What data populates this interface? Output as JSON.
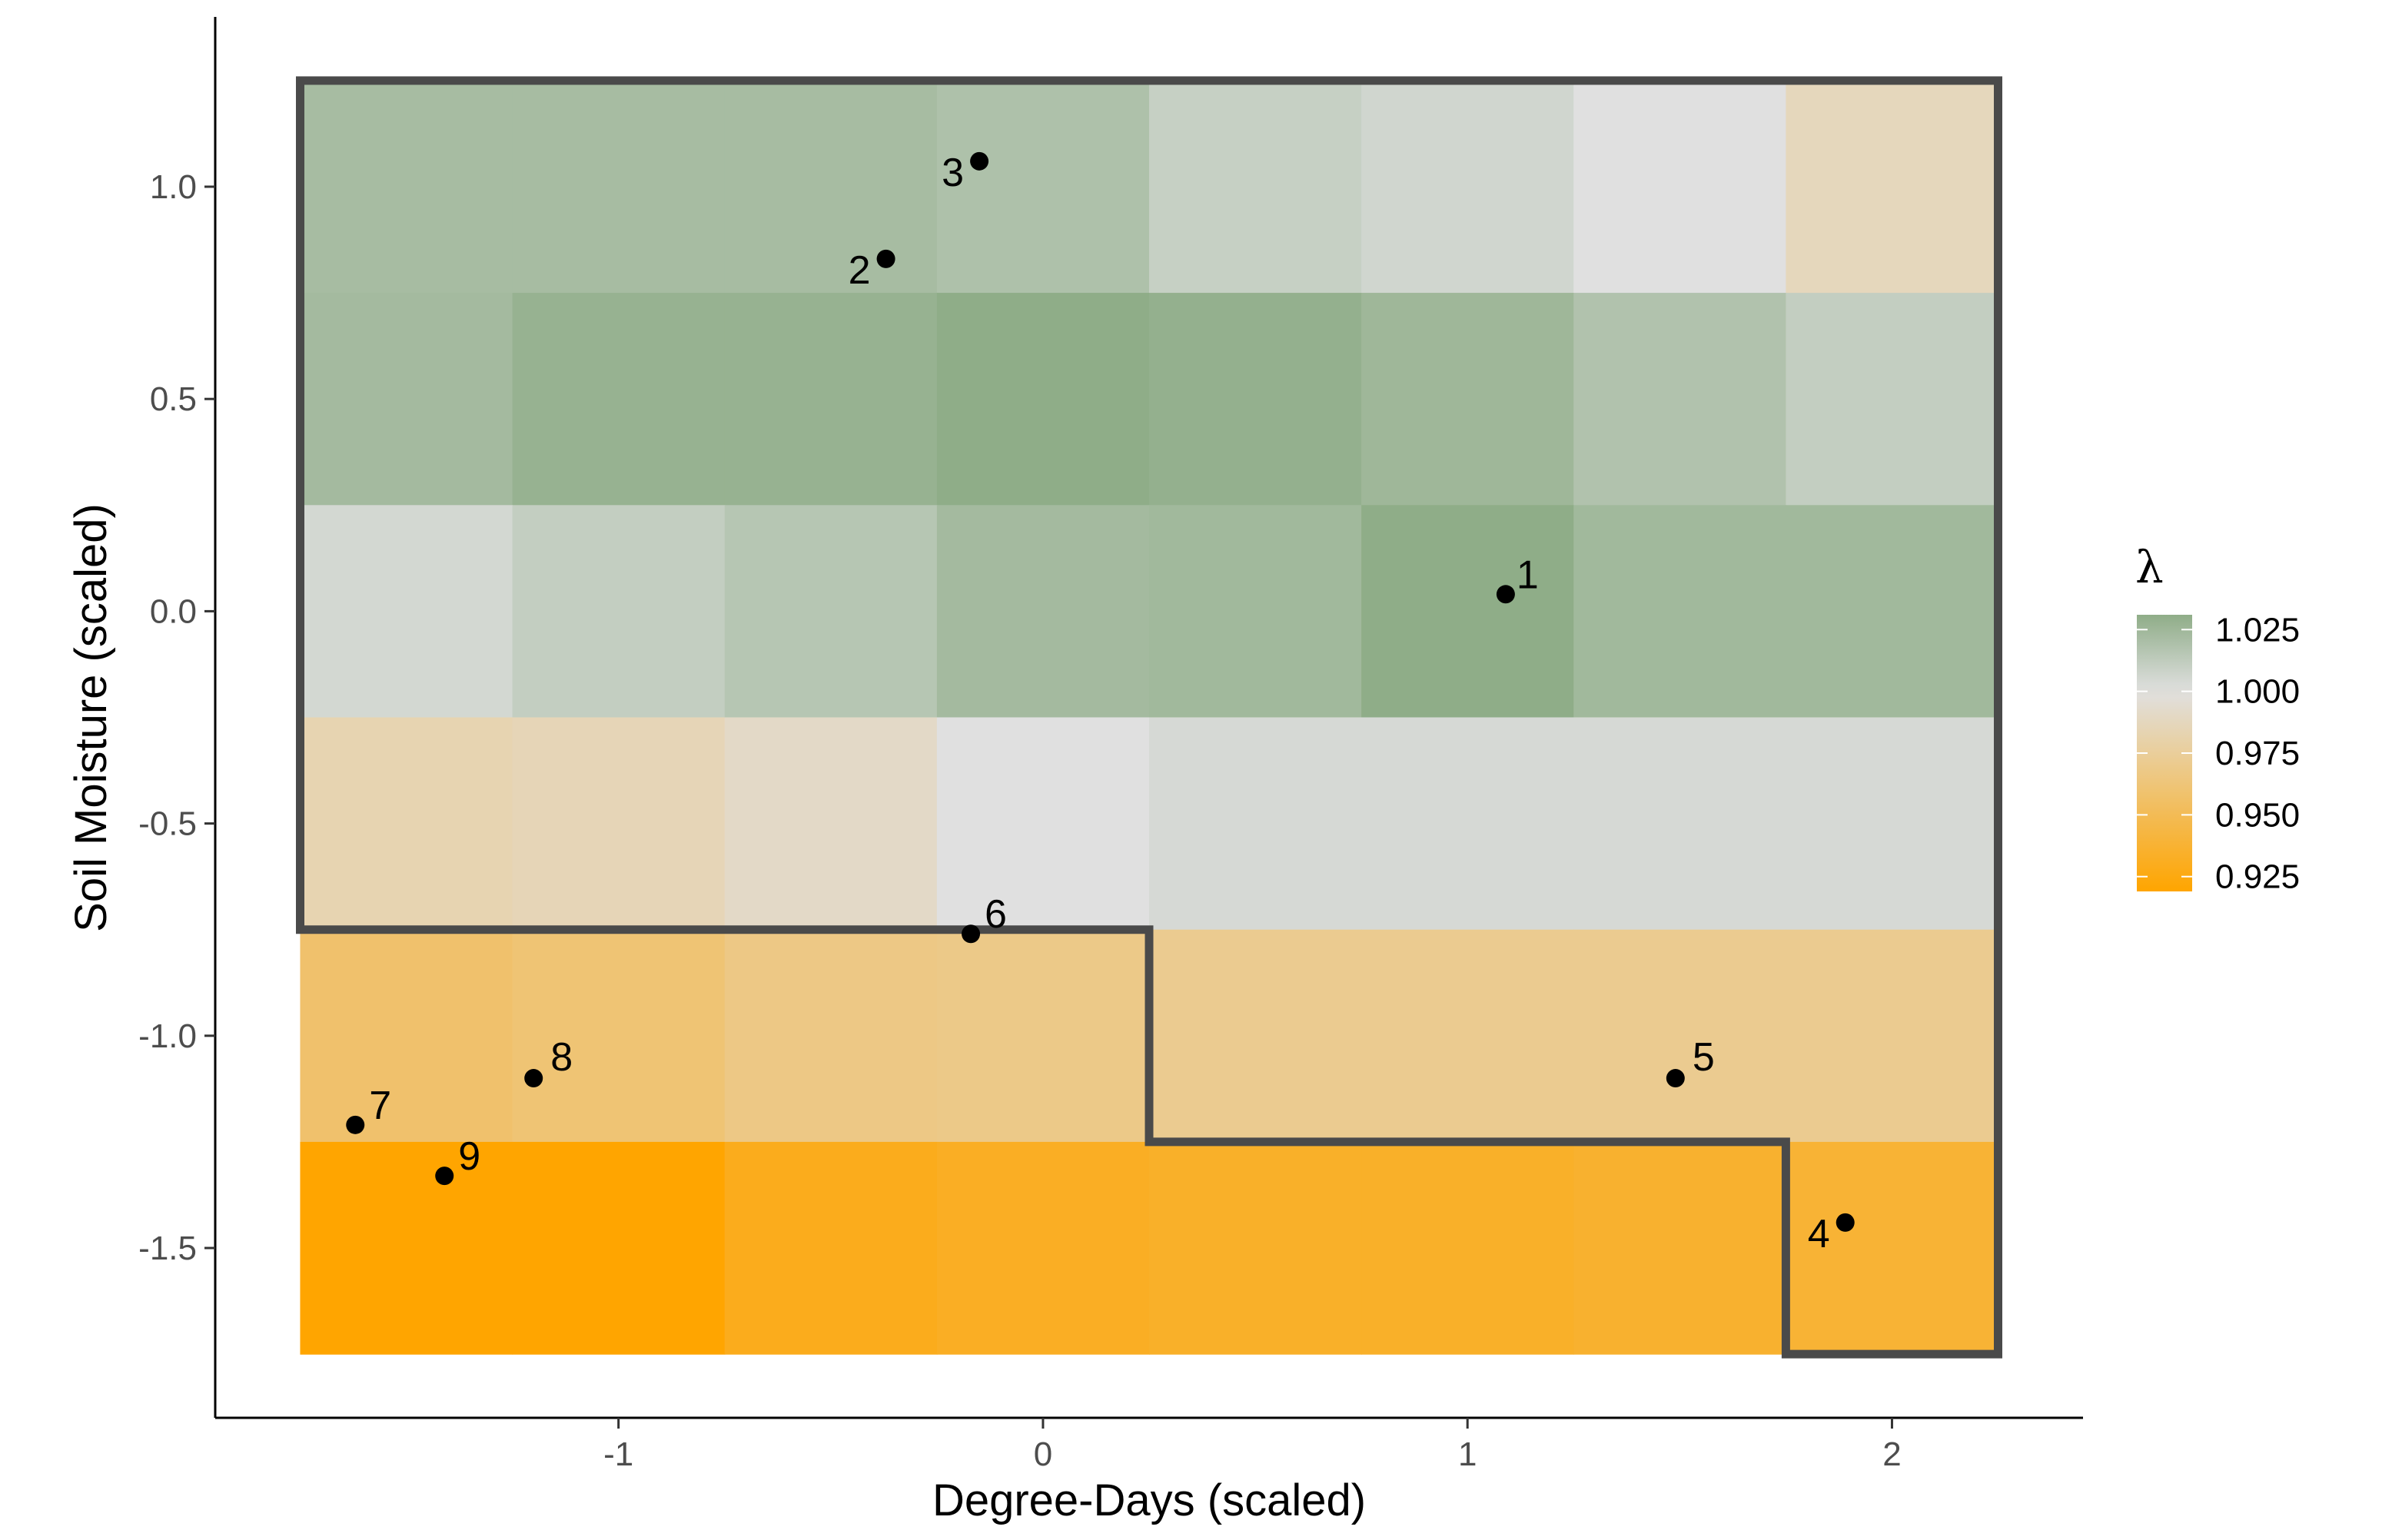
{
  "chart_data": {
    "type": "heatmap",
    "title": "",
    "xlabel": "Degree-Days (scaled)",
    "ylabel": "Soil Moisture (scaled)",
    "xlim": [
      -1.95,
      2.45
    ],
    "ylim": [
      -1.9,
      1.4
    ],
    "x_ticks": [
      -1,
      0,
      1,
      2
    ],
    "x_tick_labels": [
      "-1",
      "0",
      "1",
      "2"
    ],
    "y_ticks": [
      -1.5,
      -1.0,
      -0.5,
      0.0,
      0.5,
      1.0
    ],
    "y_tick_labels": [
      "-1.5",
      "-1.0",
      "-0.5",
      "0.0",
      "0.5",
      "1.0"
    ],
    "grid": false,
    "tile_x_centers": [
      -1.5,
      -1.0,
      -0.5,
      0.0,
      0.5,
      1.0,
      1.5,
      2.0
    ],
    "tile_y_centers": [
      1.0,
      0.5,
      0.0,
      -0.5,
      -1.0,
      -1.5
    ],
    "tile_width": 0.5,
    "tile_height": 0.5,
    "values": [
      [
        1.022,
        1.022,
        1.022,
        1.019,
        1.01,
        1.006,
        1.0,
        0.987
      ],
      [
        1.023,
        1.028,
        1.028,
        1.031,
        1.029,
        1.025,
        1.018,
        1.011
      ],
      [
        1.005,
        1.011,
        1.016,
        1.023,
        1.024,
        1.031,
        1.024,
        1.024
      ],
      [
        0.983,
        0.985,
        0.991,
        1.0,
        1.004,
        1.004,
        1.004,
        1.004
      ],
      [
        0.958,
        0.961,
        0.967,
        0.968,
        0.971,
        0.971,
        0.971,
        0.971
      ],
      [
        0.919,
        0.919,
        0.929,
        0.932,
        0.934,
        0.934,
        0.936,
        0.938
      ]
    ],
    "boundary": [
      [
        -1.75,
        1.25
      ],
      [
        2.25,
        1.25
      ],
      [
        2.25,
        -1.75
      ],
      [
        1.75,
        -1.75
      ],
      [
        1.75,
        -1.25
      ],
      [
        0.25,
        -1.25
      ],
      [
        0.25,
        -0.75
      ],
      [
        -1.75,
        -0.75
      ],
      [
        -1.75,
        1.25
      ]
    ],
    "points": [
      {
        "label": "1",
        "x": 1.09,
        "y": 0.04
      },
      {
        "label": "2",
        "x": -0.37,
        "y": 0.83
      },
      {
        "label": "3",
        "x": -0.15,
        "y": 1.06
      },
      {
        "label": "4",
        "x": 1.89,
        "y": -1.44
      },
      {
        "label": "5",
        "x": 1.49,
        "y": -1.1
      },
      {
        "label": "6",
        "x": -0.17,
        "y": -0.76
      },
      {
        "label": "7",
        "x": -1.62,
        "y": -1.21
      },
      {
        "label": "8",
        "x": -1.2,
        "y": -1.1
      },
      {
        "label": "9",
        "x": -1.41,
        "y": -1.33
      }
    ],
    "legend": {
      "title": "λ",
      "placement": "right",
      "breaks": [
        1.025,
        1.0,
        0.975,
        0.95,
        0.925
      ],
      "labels": [
        "1.025",
        "1.000",
        "0.975",
        "0.950",
        "0.925"
      ],
      "range": [
        0.919,
        1.031
      ],
      "colors": {
        "low": "#FFA500",
        "mid": "#E0E0E0",
        "high": "#8FAD88"
      },
      "midpoint": 1.0
    }
  }
}
